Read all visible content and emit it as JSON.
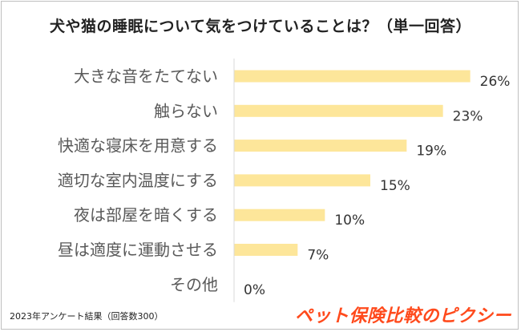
{
  "chart_data": {
    "type": "bar",
    "orientation": "horizontal",
    "title": "犬や猫の睡眠について気をつけていることは？（単一回答）",
    "categories": [
      "大きな音をたてない",
      "触らない",
      "快適な寝床を用意する",
      "適切な室内温度にする",
      "夜は部屋を暗くする",
      "昼は適度に運動させる",
      "その他"
    ],
    "values": [
      26,
      23,
      19,
      15,
      10,
      7,
      0
    ],
    "value_labels": [
      "26%",
      "23%",
      "19%",
      "15%",
      "10%",
      "7%",
      "0%"
    ],
    "xlim": [
      0,
      30
    ],
    "grid": false,
    "legend": "none",
    "bar_color": "#fde69a",
    "axis_color": "#d9d9d9"
  },
  "footnote": "2023年アンケート結果（回答数300）",
  "brand": "ペット保険比較のピクシー"
}
